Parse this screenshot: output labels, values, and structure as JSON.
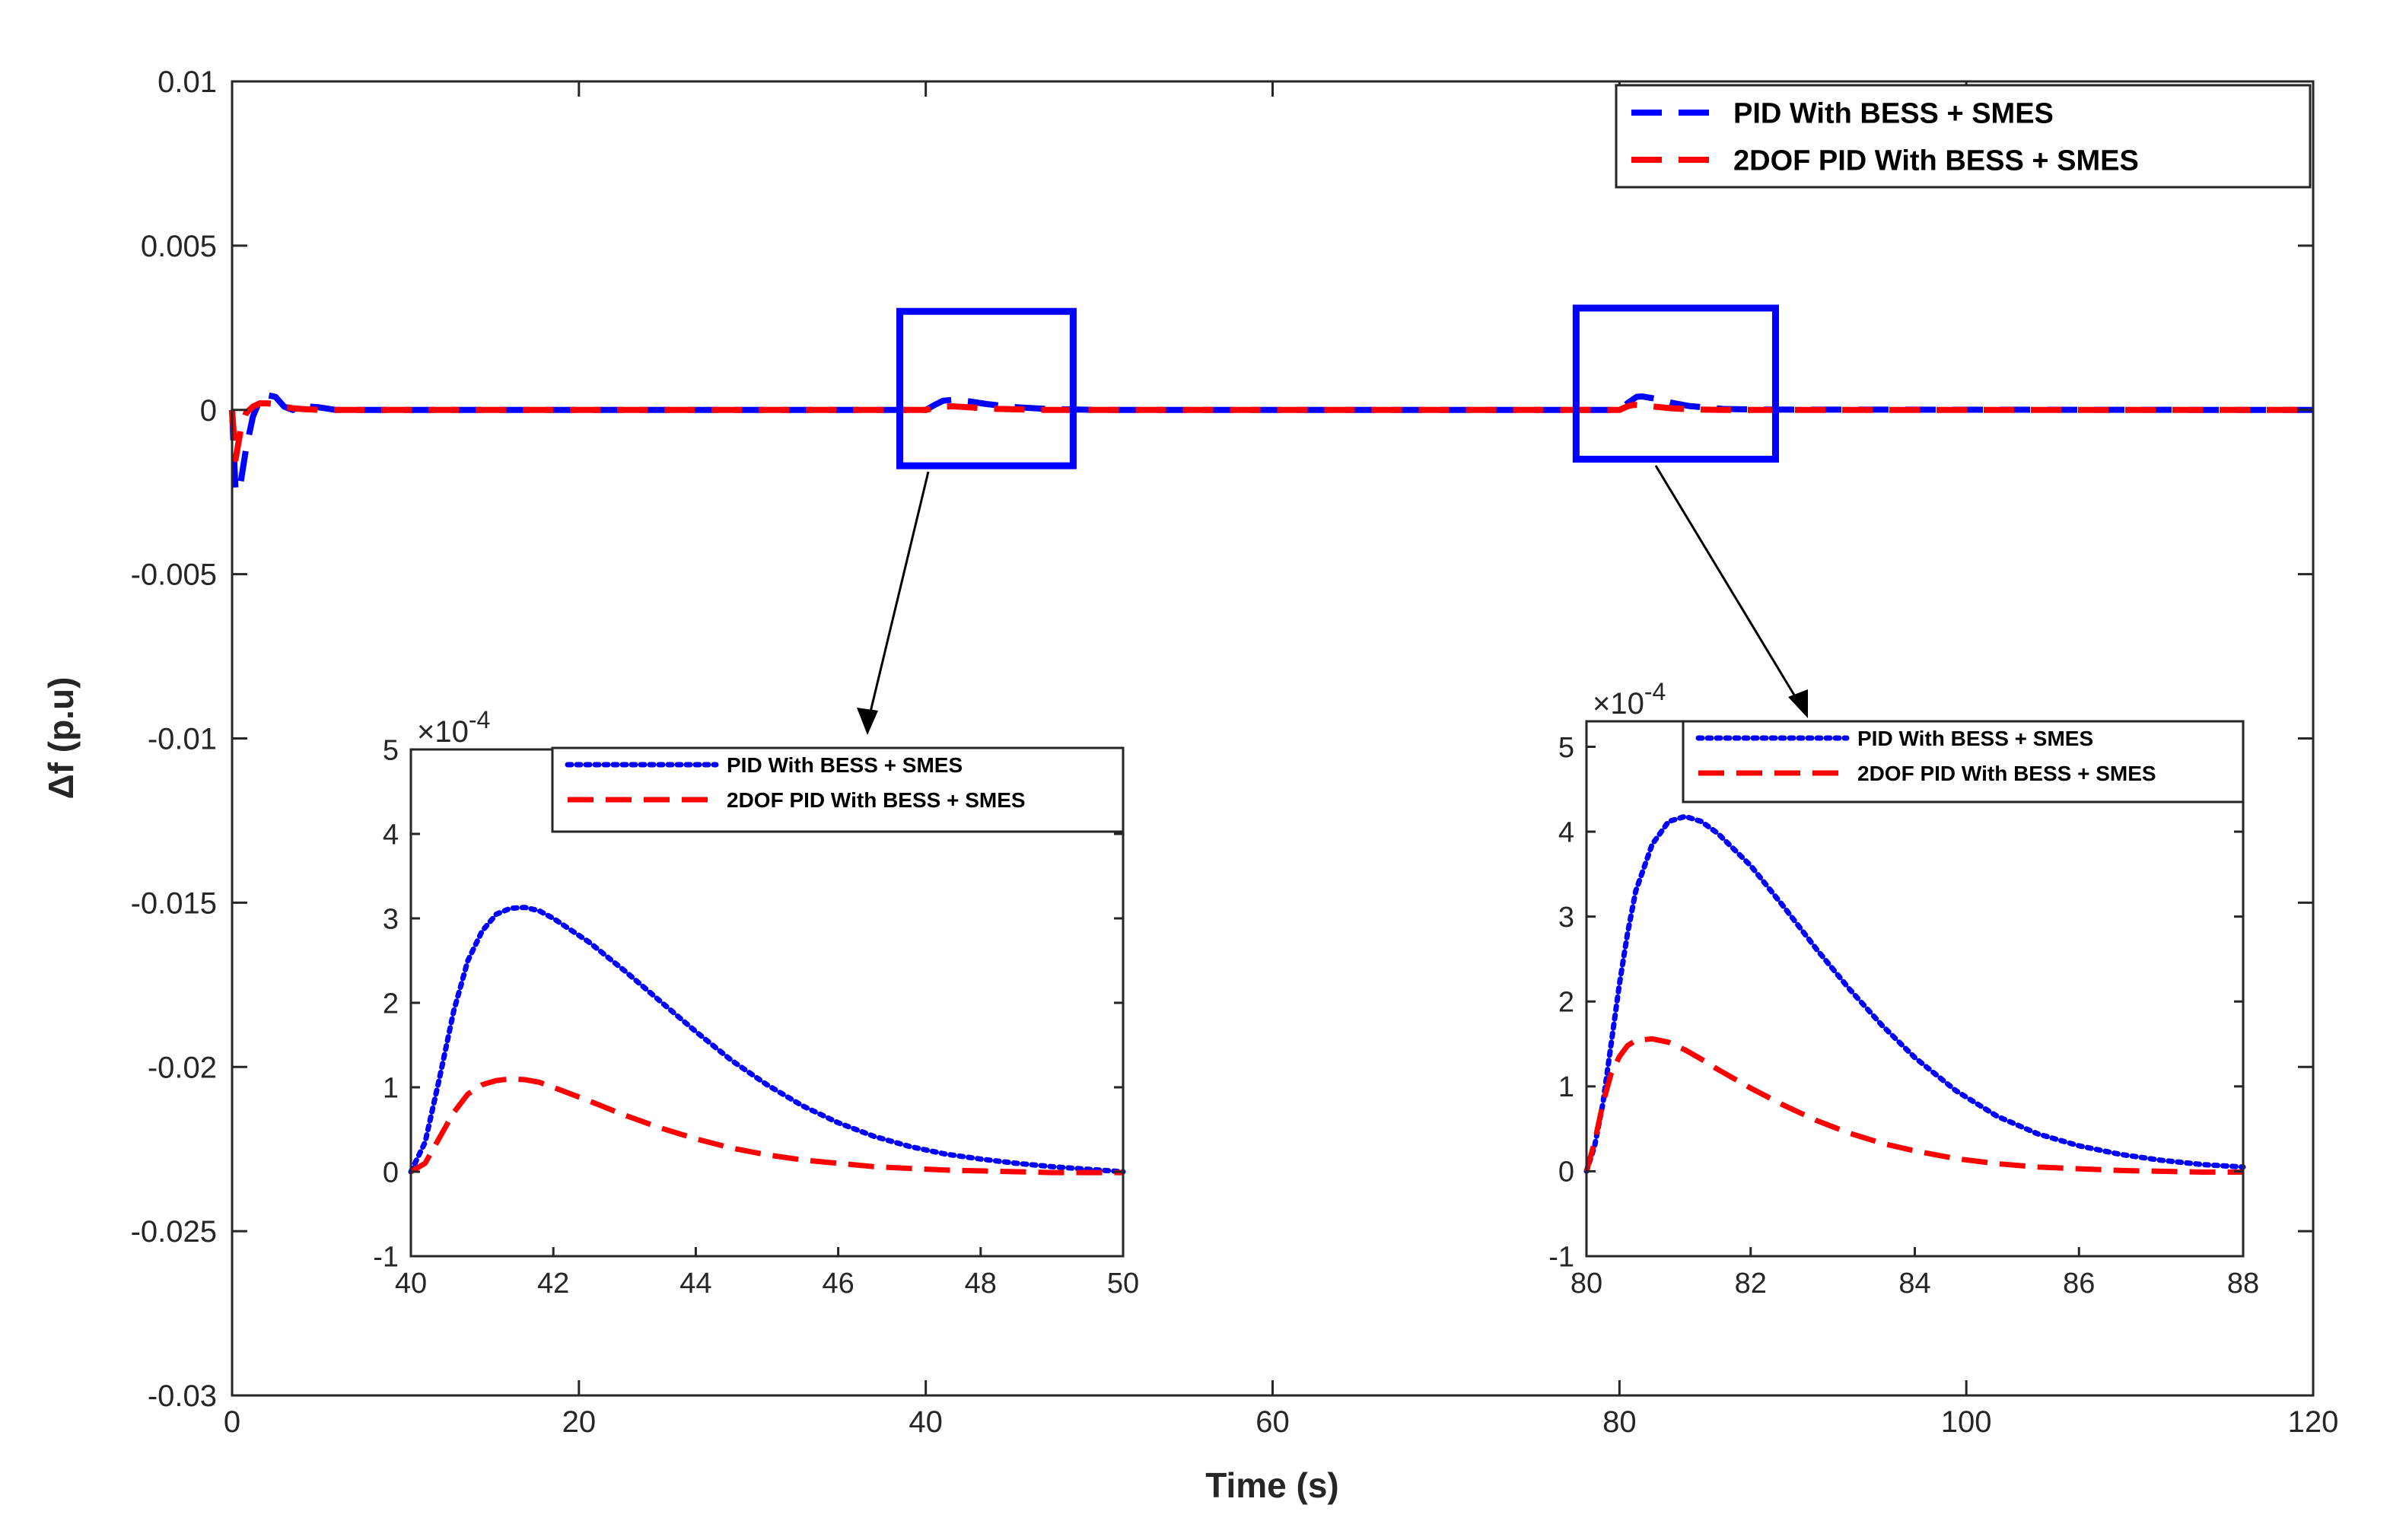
{
  "chart_data": [
    {
      "id": "main",
      "type": "line",
      "title": "",
      "xlabel": "Time (s)",
      "ylabel": "Δf (p.u)",
      "xlim": [
        0,
        120
      ],
      "ylim": [
        -0.03,
        0.01
      ],
      "xticks": [
        0,
        20,
        40,
        60,
        80,
        100,
        120
      ],
      "xtick_labels": [
        "0",
        "20",
        "40",
        "60",
        "80",
        "100",
        "120"
      ],
      "yticks": [
        0.01,
        0.005,
        0,
        -0.005,
        -0.01,
        -0.015,
        -0.02,
        -0.025,
        -0.03
      ],
      "ytick_labels": [
        "0.01",
        "0.005",
        "0",
        "-0.005",
        "-0.01",
        "-0.015",
        "-0.02",
        "-0.025",
        "-0.03"
      ],
      "grid": false,
      "legend_position": "top-right",
      "series": [
        {
          "name": "PID With BESS + SMES",
          "color": "#0000ff",
          "style": "dashed",
          "x": [
            0,
            0.2,
            0.5,
            0.8,
            1.2,
            1.6,
            2.0,
            2.5,
            3.0,
            3.5,
            4.0,
            5.0,
            6.0,
            7.0,
            8.0,
            40,
            40.5,
            41,
            41.6,
            42.5,
            43.5,
            45,
            47,
            50,
            80,
            80.5,
            81,
            81.3,
            82,
            83,
            84,
            86,
            88,
            120
          ],
          "y": [
            0,
            -0.0025,
            -0.0022,
            -0.0012,
            -0.0002,
            0.0003,
            0.00045,
            0.0004,
            0.0001,
            0.0,
            0.00012,
            8e-05,
            0.0,
            0.0,
            0.0,
            0.0,
            0.00015,
            0.00028,
            0.00031,
            0.00026,
            0.00018,
            9e-05,
            3e-05,
            0.0,
            0.0,
            0.00022,
            0.0004,
            0.00041,
            0.00035,
            0.00022,
            0.00012,
            3e-05,
            1e-05,
            0.0
          ]
        },
        {
          "name": "2DOF PID With BESS + SMES",
          "color": "#ff0000",
          "style": "dashed",
          "x": [
            0,
            0.2,
            0.5,
            0.8,
            1.2,
            1.6,
            2.0,
            2.5,
            3.0,
            3.5,
            4.0,
            5.0,
            6.0,
            7.0,
            8.0,
            40,
            40.5,
            41,
            41.5,
            42.5,
            43.5,
            45,
            47,
            50,
            80,
            80.5,
            80.8,
            81,
            82,
            83,
            84,
            86,
            88,
            120
          ],
          "y": [
            0,
            -0.0015,
            -0.0006,
            -0.0001,
            0.0001,
            0.0002,
            0.0002,
            0.00018,
            0.0001,
            5e-05,
            3e-05,
            0.0,
            0.0,
            0.0,
            0.0,
            0.0,
            6e-05,
            0.0001,
            0.00011,
            8e-05,
            4e-05,
            2e-05,
            0.0,
            0.0,
            0.0,
            0.00012,
            0.00015,
            0.00015,
            0.0001,
            5e-05,
            2e-05,
            0.0,
            0.0,
            0.0
          ]
        }
      ],
      "zoom_boxes": [
        {
          "x0": 38.5,
          "x1": 48.5,
          "y0": -0.0017,
          "y1": 0.003
        },
        {
          "x0": 77.5,
          "x1": 89,
          "y0": -0.0015,
          "y1": 0.0031
        }
      ]
    },
    {
      "id": "inset1",
      "type": "line",
      "title": "",
      "xlabel": "",
      "ylabel": "",
      "exponent_label": "×10",
      "exponent_power": "-4",
      "xlim": [
        40,
        50
      ],
      "ylim": [
        -1,
        5
      ],
      "xticks": [
        40,
        42,
        44,
        46,
        48,
        50
      ],
      "xtick_labels": [
        "40",
        "42",
        "44",
        "46",
        "48",
        "50"
      ],
      "yticks": [
        5,
        4,
        3,
        2,
        1,
        0,
        -1
      ],
      "ytick_labels": [
        "5",
        "4",
        "3",
        "2",
        "1",
        "0",
        "-1"
      ],
      "grid": false,
      "legend_position": "top-right",
      "series": [
        {
          "name": "PID With BESS + SMES",
          "color": "#0000ff",
          "style": "dotted",
          "x": [
            40,
            40.2,
            40.4,
            40.6,
            40.8,
            41,
            41.2,
            41.4,
            41.6,
            41.8,
            42,
            42.5,
            43,
            43.5,
            44,
            44.5,
            45,
            45.5,
            46,
            46.5,
            47,
            47.5,
            48,
            48.5,
            49,
            49.5,
            50
          ],
          "y": [
            0,
            0.35,
            1.1,
            1.9,
            2.5,
            2.85,
            3.05,
            3.12,
            3.13,
            3.09,
            3.0,
            2.72,
            2.38,
            2.02,
            1.66,
            1.32,
            1.03,
            0.78,
            0.58,
            0.42,
            0.3,
            0.21,
            0.15,
            0.1,
            0.06,
            0.03,
            0.0
          ]
        },
        {
          "name": "2DOF PID With BESS + SMES",
          "color": "#ff0000",
          "style": "dashed",
          "x": [
            40,
            40.2,
            40.4,
            40.6,
            40.8,
            41,
            41.2,
            41.4,
            41.6,
            41.8,
            42,
            42.5,
            43,
            43.5,
            44,
            44.5,
            45,
            45.5,
            46,
            46.5,
            47,
            47.5,
            48,
            48.5,
            49,
            49.5,
            50
          ],
          "y": [
            0,
            0.1,
            0.4,
            0.7,
            0.92,
            1.03,
            1.08,
            1.1,
            1.09,
            1.06,
            1.0,
            0.84,
            0.67,
            0.52,
            0.39,
            0.28,
            0.2,
            0.14,
            0.1,
            0.06,
            0.04,
            0.02,
            0.01,
            0.0,
            -0.01,
            -0.01,
            -0.01
          ]
        }
      ]
    },
    {
      "id": "inset2",
      "type": "line",
      "title": "",
      "xlabel": "",
      "ylabel": "",
      "exponent_label": "×10",
      "exponent_power": "-4",
      "xlim": [
        80,
        88
      ],
      "ylim": [
        -1,
        5.3
      ],
      "xticks": [
        80,
        82,
        84,
        86,
        88
      ],
      "xtick_labels": [
        "80",
        "82",
        "84",
        "86",
        "88"
      ],
      "yticks": [
        5,
        4,
        3,
        2,
        1,
        0,
        -1
      ],
      "ytick_labels": [
        "5",
        "4",
        "3",
        "2",
        "1",
        "0",
        "-1"
      ],
      "grid": false,
      "legend_position": "top-right",
      "series": [
        {
          "name": "PID With BESS + SMES",
          "color": "#0000ff",
          "style": "dotted",
          "x": [
            80,
            80.1,
            80.2,
            80.3,
            80.4,
            80.5,
            80.6,
            80.8,
            81,
            81.2,
            81.4,
            81.6,
            82,
            82.4,
            82.8,
            83.2,
            83.6,
            84,
            84.5,
            85,
            85.5,
            86,
            86.5,
            87,
            87.5,
            88
          ],
          "y": [
            0,
            0.3,
            0.8,
            1.5,
            2.2,
            2.8,
            3.3,
            3.85,
            4.12,
            4.18,
            4.12,
            3.98,
            3.6,
            3.12,
            2.62,
            2.15,
            1.72,
            1.34,
            0.95,
            0.65,
            0.44,
            0.3,
            0.2,
            0.13,
            0.08,
            0.05
          ]
        },
        {
          "name": "2DOF PID With BESS + SMES",
          "color": "#ff0000",
          "style": "dashed",
          "x": [
            80,
            80.1,
            80.2,
            80.3,
            80.4,
            80.5,
            80.6,
            80.8,
            81,
            81.2,
            81.4,
            81.6,
            82,
            82.4,
            82.8,
            83.2,
            83.6,
            84,
            84.5,
            85,
            85.5,
            86,
            86.5,
            87,
            87.5,
            88
          ],
          "y": [
            0,
            0.35,
            0.8,
            1.15,
            1.35,
            1.48,
            1.54,
            1.56,
            1.52,
            1.43,
            1.32,
            1.2,
            0.98,
            0.78,
            0.6,
            0.45,
            0.33,
            0.24,
            0.15,
            0.09,
            0.05,
            0.03,
            0.01,
            0.0,
            -0.01,
            -0.01
          ]
        }
      ]
    }
  ]
}
